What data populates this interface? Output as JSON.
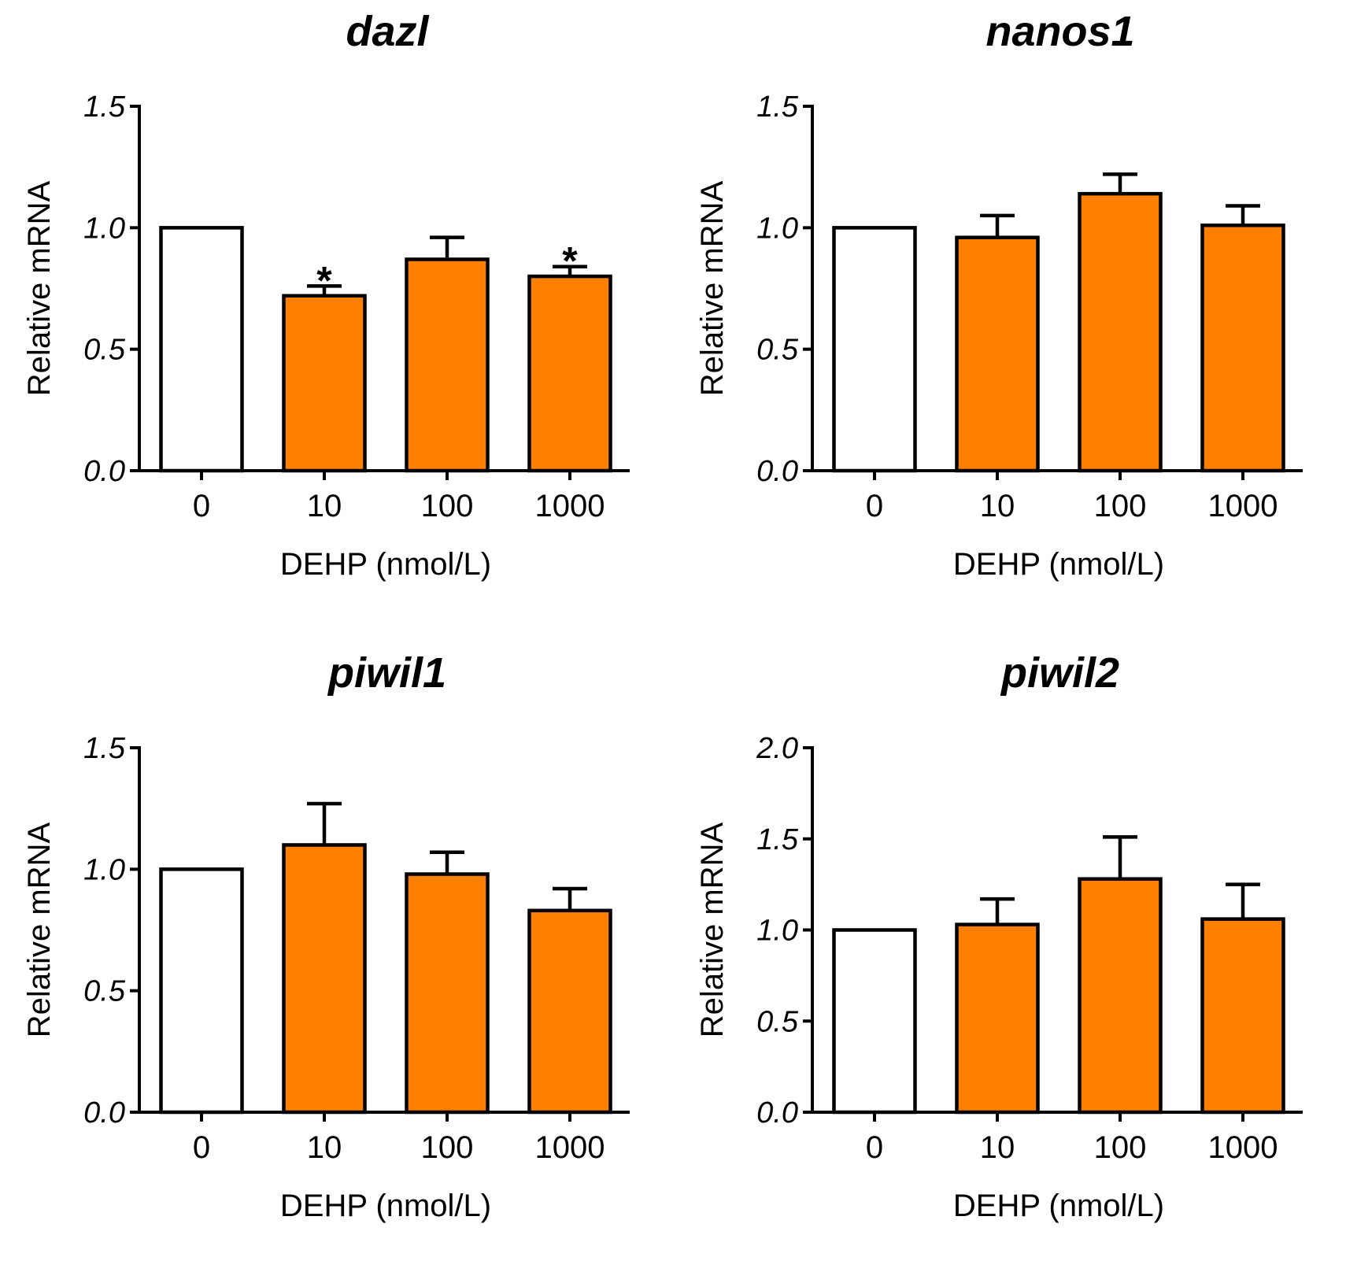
{
  "colors": {
    "control": "#ffffff",
    "treated": "#ff7f00",
    "axis": "#000000"
  },
  "chart_data": [
    {
      "type": "bar",
      "title": "dazl",
      "xlabel": "DEHP (nmol/L)",
      "ylabel": "Relative mRNA",
      "categories": [
        "0",
        "10",
        "100",
        "1000"
      ],
      "values": [
        1.0,
        0.72,
        0.87,
        0.8
      ],
      "errors": [
        0,
        0.04,
        0.09,
        0.04
      ],
      "significance": [
        "",
        "*",
        "",
        "*"
      ],
      "ylim": [
        0,
        1.5
      ],
      "yticks": [
        "0.0",
        "0.5",
        "1.0",
        "1.5"
      ]
    },
    {
      "type": "bar",
      "title": "nanos1",
      "xlabel": "DEHP (nmol/L)",
      "ylabel": "Relative mRNA",
      "categories": [
        "0",
        "10",
        "100",
        "1000"
      ],
      "values": [
        1.0,
        0.96,
        1.14,
        1.01
      ],
      "errors": [
        0,
        0.09,
        0.08,
        0.08
      ],
      "significance": [
        "",
        "",
        "",
        ""
      ],
      "ylim": [
        0,
        1.5
      ],
      "yticks": [
        "0.0",
        "0.5",
        "1.0",
        "1.5"
      ]
    },
    {
      "type": "bar",
      "title": "piwil1",
      "xlabel": "DEHP (nmol/L)",
      "ylabel": "Relative mRNA",
      "categories": [
        "0",
        "10",
        "100",
        "1000"
      ],
      "values": [
        1.0,
        1.1,
        0.98,
        0.83
      ],
      "errors": [
        0,
        0.17,
        0.09,
        0.09
      ],
      "significance": [
        "",
        "",
        "",
        ""
      ],
      "ylim": [
        0,
        1.5
      ],
      "yticks": [
        "0.0",
        "0.5",
        "1.0",
        "1.5"
      ]
    },
    {
      "type": "bar",
      "title": "piwil2",
      "xlabel": "DEHP (nmol/L)",
      "ylabel": "Relative mRNA",
      "categories": [
        "0",
        "10",
        "100",
        "1000"
      ],
      "values": [
        1.0,
        1.03,
        1.28,
        1.06
      ],
      "errors": [
        0,
        0.14,
        0.23,
        0.19
      ],
      "significance": [
        "",
        "",
        "",
        ""
      ],
      "ylim": [
        0,
        2.0
      ],
      "yticks": [
        "0.0",
        "0.5",
        "1.0",
        "1.5",
        "2.0"
      ]
    }
  ]
}
